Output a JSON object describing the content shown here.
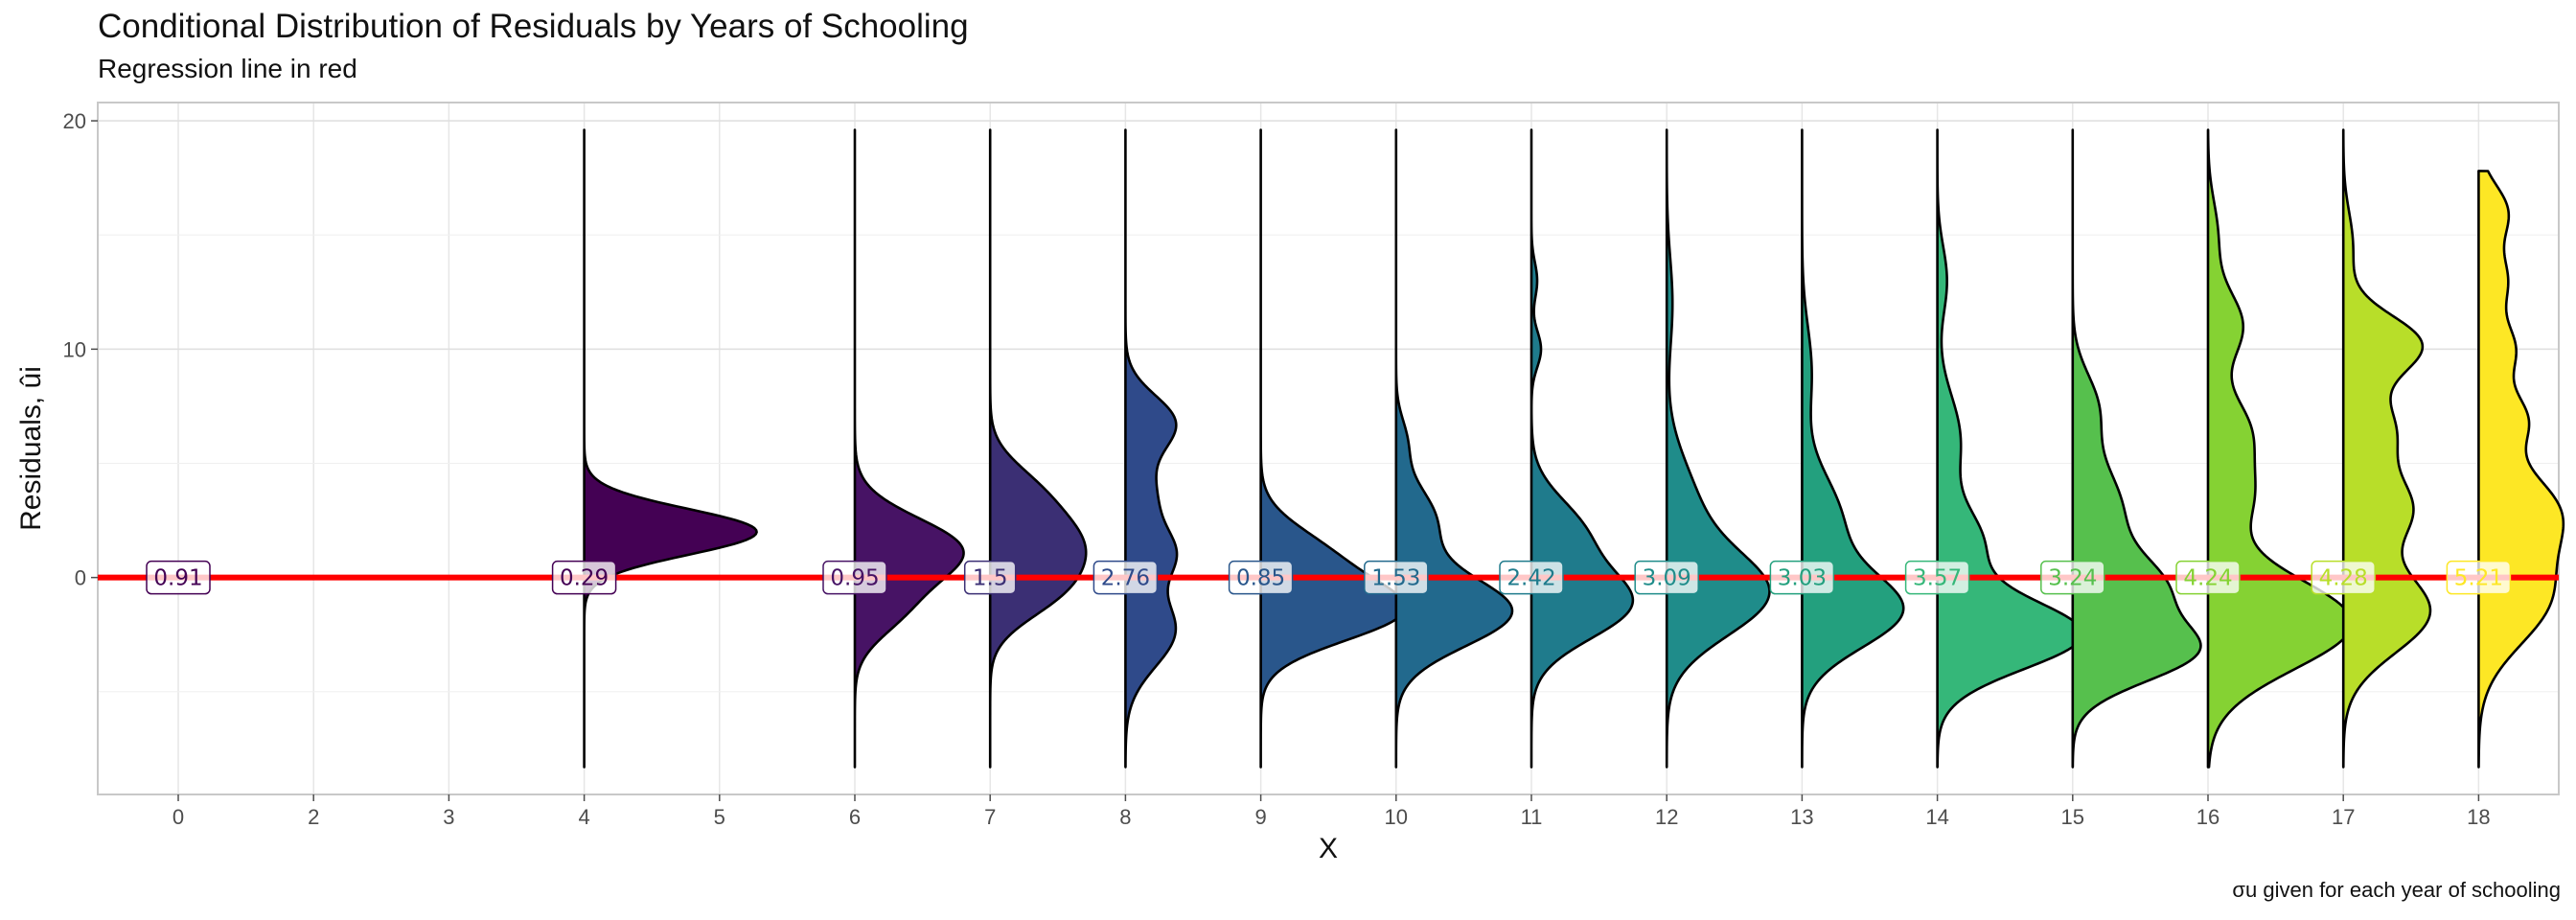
{
  "title": "Conditional Distribution of Residuals by Years of Schooling",
  "subtitle": "Regression line in red",
  "caption": "given for each year of schooling",
  "caption_symbol": "σu",
  "chart_data": {
    "type": "violin",
    "title": "Conditional Distribution of Residuals by Years of Schooling",
    "subtitle": "Regression line in red",
    "xlabel": "X",
    "ylabel": "Residuals, ûi",
    "x_categories": [
      "0",
      "2",
      "3",
      "4",
      "5",
      "6",
      "7",
      "8",
      "9",
      "10",
      "11",
      "12",
      "13",
      "14",
      "15",
      "16",
      "17",
      "18"
    ],
    "y_ticks": [
      0,
      10,
      20
    ],
    "ylim": [
      -9.5,
      20.8
    ],
    "grid": true,
    "regression_line_y": 0,
    "regression_line_color": "#ff0000",
    "labels": [
      {
        "x": "0",
        "value": "0.91"
      },
      {
        "x": "4",
        "value": "0.29"
      },
      {
        "x": "6",
        "value": "0.95"
      },
      {
        "x": "7",
        "value": "1.5"
      },
      {
        "x": "8",
        "value": "2.76"
      },
      {
        "x": "9",
        "value": "0.85"
      },
      {
        "x": "10",
        "value": "1.53"
      },
      {
        "x": "11",
        "value": "2.42"
      },
      {
        "x": "12",
        "value": "3.09"
      },
      {
        "x": "13",
        "value": "3.03"
      },
      {
        "x": "14",
        "value": "3.57"
      },
      {
        "x": "15",
        "value": "3.24"
      },
      {
        "x": "16",
        "value": "4.24"
      },
      {
        "x": "17",
        "value": "4.28"
      },
      {
        "x": "18",
        "value": "5.21"
      }
    ],
    "densities": [
      {
        "x": "4",
        "color": "#440154",
        "range": [
          -8.3,
          19.6
        ],
        "peaks": [
          [
            2.0,
            1.0,
            0.9
          ]
        ]
      },
      {
        "x": "6",
        "color": "#471365",
        "range": [
          -8.3,
          19.6
        ],
        "peaks": [
          [
            1.2,
            1.4,
            0.55
          ],
          [
            -1.5,
            1.2,
            0.2
          ]
        ]
      },
      {
        "x": "7",
        "color": "#3b2f74",
        "range": [
          -8.3,
          19.6
        ],
        "peaks": [
          [
            1.4,
            1.6,
            0.45
          ],
          [
            -0.9,
            1.2,
            0.2
          ],
          [
            4.0,
            1.2,
            0.15
          ]
        ]
      },
      {
        "x": "8",
        "color": "#2f4a8a",
        "range": [
          -8.3,
          19.6
        ],
        "peaks": [
          [
            1.0,
            1.1,
            0.2
          ],
          [
            -2.3,
            1.6,
            0.26
          ],
          [
            6.8,
            1.2,
            0.25
          ],
          [
            3.5,
            1.5,
            0.15
          ]
        ]
      },
      {
        "x": "9",
        "color": "#29568b",
        "range": [
          -8.3,
          19.6
        ],
        "peaks": [
          [
            -1.5,
            1.3,
            0.7
          ],
          [
            1.0,
            1.3,
            0.3
          ]
        ]
      },
      {
        "x": "10",
        "color": "#22698d",
        "range": [
          -8.3,
          19.6
        ],
        "peaks": [
          [
            -1.5,
            1.5,
            0.6
          ],
          [
            2.5,
            1.5,
            0.2
          ],
          [
            6.0,
            1.0,
            0.05
          ]
        ]
      },
      {
        "x": "11",
        "color": "#1f7b8c",
        "range": [
          -8.3,
          19.6
        ],
        "peaks": [
          [
            -1.2,
            1.5,
            0.5
          ],
          [
            2.0,
            1.5,
            0.25
          ],
          [
            10.0,
            0.8,
            0.05
          ],
          [
            13.0,
            0.8,
            0.03
          ]
        ]
      },
      {
        "x": "12",
        "color": "#1f8c8a",
        "range": [
          -8.3,
          19.6
        ],
        "peaks": [
          [
            -0.8,
            1.8,
            0.5
          ],
          [
            3.0,
            2.2,
            0.15
          ],
          [
            12.0,
            2.0,
            0.03
          ]
        ]
      },
      {
        "x": "13",
        "color": "#23a07e",
        "range": [
          -8.3,
          19.6
        ],
        "peaks": [
          [
            -1.5,
            1.6,
            0.5
          ],
          [
            2.5,
            2.0,
            0.2
          ],
          [
            9.0,
            2.0,
            0.05
          ]
        ]
      },
      {
        "x": "14",
        "color": "#35b779",
        "range": [
          -8.3,
          19.6
        ],
        "peaks": [
          [
            -2.5,
            1.5,
            0.75
          ],
          [
            1.5,
            1.5,
            0.22
          ],
          [
            6.0,
            2.0,
            0.12
          ],
          [
            13.0,
            1.5,
            0.05
          ]
        ]
      },
      {
        "x": "15",
        "color": "#56c04d",
        "range": [
          -8.3,
          19.6
        ],
        "peaks": [
          [
            -3.3,
            1.3,
            0.6
          ],
          [
            -0.5,
            1.4,
            0.4
          ],
          [
            3.0,
            2.0,
            0.25
          ],
          [
            7.5,
            1.5,
            0.12
          ]
        ]
      },
      {
        "x": "16",
        "color": "#85d233",
        "range": [
          -8.3,
          19.6
        ],
        "peaks": [
          [
            -2.0,
            2.0,
            0.75
          ],
          [
            3.5,
            1.5,
            0.2
          ],
          [
            6.5,
            1.5,
            0.2
          ],
          [
            11.0,
            1.5,
            0.18
          ],
          [
            15.0,
            1.5,
            0.05
          ]
        ]
      },
      {
        "x": "17",
        "color": "#b8de29",
        "range": [
          -8.3,
          19.6
        ],
        "peaks": [
          [
            -1.5,
            1.8,
            0.45
          ],
          [
            3.0,
            1.5,
            0.33
          ],
          [
            6.5,
            1.5,
            0.25
          ],
          [
            10.2,
            1.3,
            0.4
          ],
          [
            14.5,
            1.5,
            0.05
          ]
        ]
      },
      {
        "x": "18",
        "color": "#fde725",
        "range": [
          -8.3,
          17.8
        ],
        "peaks": [
          [
            -1.0,
            2.0,
            0.35
          ],
          [
            3.0,
            1.8,
            0.38
          ],
          [
            7.0,
            1.2,
            0.22
          ],
          [
            10.0,
            1.2,
            0.18
          ],
          [
            13.0,
            1.2,
            0.14
          ],
          [
            16.0,
            1.2,
            0.15
          ]
        ]
      }
    ]
  }
}
